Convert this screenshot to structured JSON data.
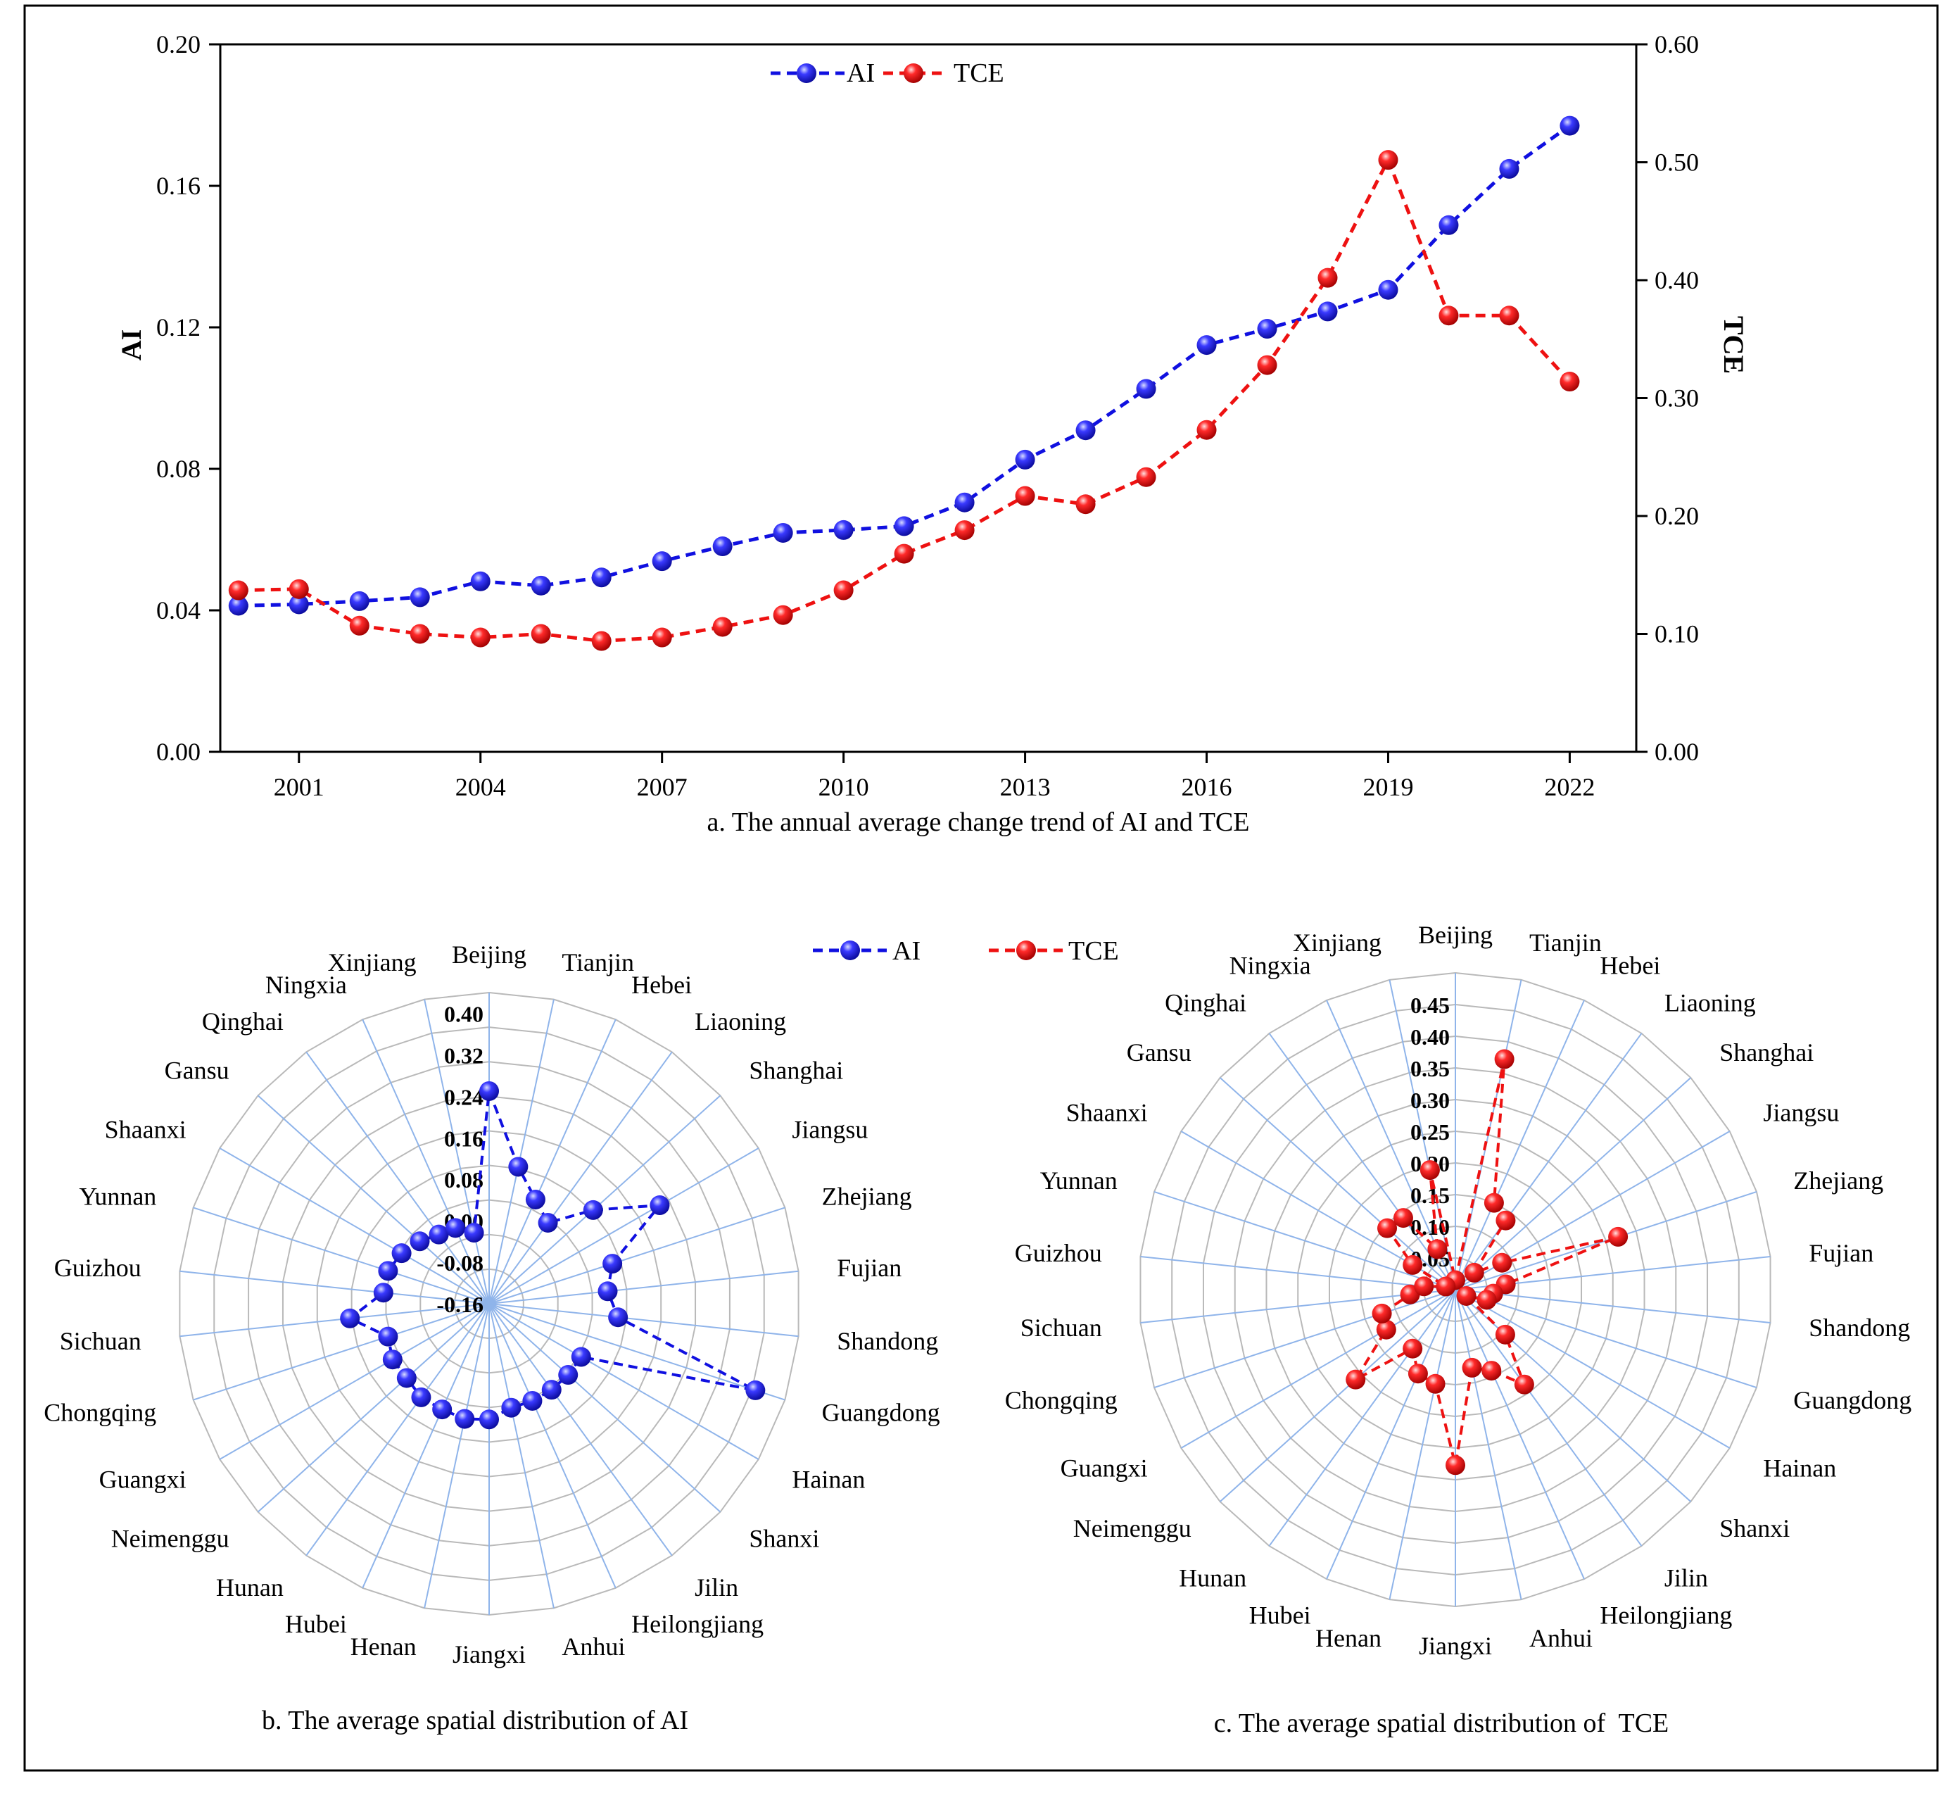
{
  "colors": {
    "ai": "#1010e0",
    "tce": "#ee1111",
    "grid": "#b9b9b9",
    "spoke": "#8fb4ea"
  },
  "chart_data": [
    {
      "type": "line",
      "title": "a. The annual average change trend of AI and TCE",
      "xlabel": "",
      "ylabel": "AI",
      "y2label": "TCE",
      "xlim": [
        1999.7,
        2023.1
      ],
      "ylim": [
        0,
        0.2
      ],
      "y2lim": [
        0,
        0.6
      ],
      "xticks": [
        "2001",
        "2004",
        "2007",
        "2010",
        "2013",
        "2016",
        "2019",
        "2022"
      ],
      "yticks": [
        "0.00",
        "0.04",
        "0.08",
        "0.12",
        "0.16",
        "0.20"
      ],
      "y2ticks": [
        "0.00",
        "0.10",
        "0.20",
        "0.30",
        "0.40",
        "0.50",
        "0.60"
      ],
      "legend": [
        "AI",
        "TCE"
      ],
      "legend_position": "top-center",
      "x": [
        2000,
        2001,
        2002,
        2003,
        2004,
        2005,
        2006,
        2007,
        2008,
        2009,
        2010,
        2011,
        2012,
        2013,
        2014,
        2015,
        2016,
        2017,
        2018,
        2019,
        2020,
        2021,
        2022
      ],
      "series": [
        {
          "name": "AI",
          "axis": "left",
          "values": [
            0.0413,
            0.0417,
            0.0426,
            0.0437,
            0.0482,
            0.047,
            0.0493,
            0.0539,
            0.0581,
            0.0619,
            0.0627,
            0.0638,
            0.0705,
            0.0826,
            0.0909,
            0.1026,
            0.115,
            0.1196,
            0.1245,
            0.1306,
            0.1489,
            0.1648,
            0.177
          ]
        },
        {
          "name": "TCE",
          "axis": "right",
          "values": [
            0.137,
            0.138,
            0.107,
            0.1,
            0.097,
            0.1,
            0.094,
            0.097,
            0.106,
            0.116,
            0.137,
            0.168,
            0.188,
            0.217,
            0.21,
            0.233,
            0.273,
            0.328,
            0.402,
            0.502,
            0.37,
            0.37,
            0.314
          ]
        }
      ]
    },
    {
      "type": "radar",
      "title": "b. The average spatial distribution of AI",
      "series_name": "AI",
      "rlim": [
        -0.16,
        0.44
      ],
      "ticks": [
        "-0.16",
        "-0.08",
        "0.00",
        "0.08",
        "0.16",
        "0.24",
        "0.32",
        "0.40"
      ],
      "tick_values": [
        -0.16,
        -0.08,
        0.0,
        0.08,
        0.16,
        0.24,
        0.32,
        0.4
      ],
      "categories": [
        "Beijing",
        "Tianjin",
        "Hebei",
        "Liaoning",
        "Shanghai",
        "Jiangsu",
        "Zhejiang",
        "Fujian",
        "Shandong",
        "Guangdong",
        "Hainan",
        "Shanxi",
        "Jilin",
        "Heilongjiang",
        "Anhui",
        "Jiangxi",
        "Henan",
        "Hubei",
        "Hunan",
        "Neimenggu",
        "Guangxi",
        "Chongqing",
        "Sichuan",
        "Guizhou",
        "Yunnan",
        "Shaanxi",
        "Gansu",
        "Qinghai",
        "Ningxia",
        "Xinjiang"
      ],
      "values": [
        0.25,
        0.11,
        0.06,
        0.033,
        0.11,
        0.22,
        0.09,
        0.07,
        0.09,
        0.38,
        0.045,
        0.045,
        0.045,
        0.045,
        0.045,
        0.063,
        0.067,
        0.063,
        0.063,
        0.054,
        0.055,
        0.045,
        0.11,
        0.045,
        0.045,
        0.035,
        0.02,
        0.005,
        0.0,
        -0.02
      ]
    },
    {
      "type": "radar",
      "title": "c. The average spatial distribution of  TCE",
      "series_name": "TCE",
      "rlim": [
        0,
        0.5
      ],
      "ticks": [
        "0.05",
        "0.10",
        "0.15",
        "0.20",
        "0.25",
        "0.30",
        "0.35",
        "0.40",
        "0.45"
      ],
      "tick_values": [
        0.05,
        0.1,
        0.15,
        0.2,
        0.25,
        0.3,
        0.35,
        0.4,
        0.45
      ],
      "categories": [
        "Beijing",
        "Tianjin",
        "Hebei",
        "Liaoning",
        "Shanghai",
        "Jiangsu",
        "Zhejiang",
        "Fujian",
        "Shandong",
        "Guangdong",
        "Hainan",
        "Shanxi",
        "Jilin",
        "Heilongjiang",
        "Anhui",
        "Jiangxi",
        "Henan",
        "Hubei",
        "Hunan",
        "Neimenggu",
        "Guangxi",
        "Chongqing",
        "Sichuan",
        "Guizhou",
        "Yunnan",
        "Shaanxi",
        "Gansu",
        "Qinghai",
        "Ningxia",
        "Xinjiang"
      ],
      "values": [
        0.015,
        0.372,
        0.15,
        0.135,
        0.04,
        0.085,
        0.27,
        0.08,
        0.06,
        0.052,
        0.02,
        0.106,
        0.185,
        0.14,
        0.126,
        0.277,
        0.152,
        0.145,
        0.115,
        0.212,
        0.126,
        0.122,
        0.072,
        0.05,
        0.016,
        0.078,
        0.145,
        0.14,
        0.07,
        0.193
      ]
    }
  ]
}
